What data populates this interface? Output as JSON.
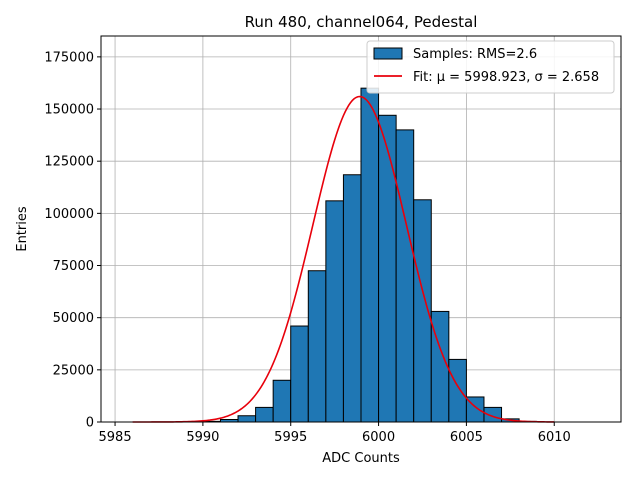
{
  "chart_data": {
    "type": "bar",
    "title": "Run 480, channel064, Pedestal",
    "xlabel": "ADC Counts",
    "ylabel": "Entries",
    "xlim": [
      5984.2,
      6013.8
    ],
    "ylim": [
      0,
      185000
    ],
    "xticks": [
      5985,
      5990,
      5995,
      6000,
      6005,
      6010
    ],
    "yticks": [
      0,
      25000,
      50000,
      75000,
      100000,
      125000,
      150000,
      175000
    ],
    "grid": true,
    "legend_position": "top-right",
    "histogram": {
      "bin_width": 1,
      "bin_starts": [
        5990,
        5991,
        5992,
        5993,
        5994,
        5995,
        5996,
        5997,
        5998,
        5999,
        6000,
        6001,
        6002,
        6003,
        6004,
        6005,
        6006,
        6007,
        6008
      ],
      "counts": [
        300,
        1200,
        3000,
        7000,
        20000,
        46000,
        72500,
        106000,
        118500,
        160000,
        147000,
        140000,
        106500,
        53000,
        30000,
        12000,
        7000,
        1500,
        300
      ],
      "color": "#1f77b4",
      "edge_color": "#000000"
    },
    "fit": {
      "mu": 5998.923,
      "sigma": 2.658,
      "amplitude": 156000,
      "x_range": [
        5986,
        6010
      ],
      "color": "#e8000b"
    },
    "legend": [
      {
        "label": "Samples: RMS=2.6",
        "kind": "patch",
        "color": "#1f77b4"
      },
      {
        "label": "Fit: μ = 5998.923, σ = 2.658",
        "kind": "line",
        "color": "#e8000b"
      }
    ]
  }
}
